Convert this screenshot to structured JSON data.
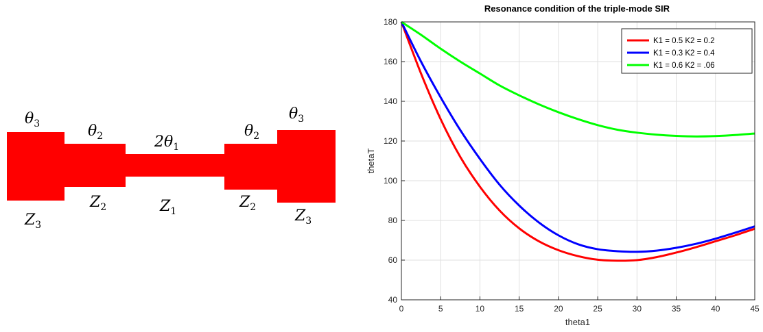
{
  "diagram": {
    "segment_color": "#ff0000",
    "labels": {
      "left_theta3": {
        "base": "θ",
        "sub": "3"
      },
      "left_theta2": {
        "base": "θ",
        "sub": "2"
      },
      "center_theta1": {
        "base": "2θ",
        "sub": "1"
      },
      "right_theta2": {
        "base": "θ",
        "sub": "2"
      },
      "right_theta3": {
        "base": "θ",
        "sub": "3"
      },
      "left_z3": {
        "base": "Z",
        "sub": "3"
      },
      "left_z2": {
        "base": "Z",
        "sub": "2"
      },
      "center_z1": {
        "base": "Z",
        "sub": "1"
      },
      "right_z2": {
        "base": "Z",
        "sub": "2"
      },
      "right_z3": {
        "base": "Z",
        "sub": "3"
      }
    }
  },
  "chart_data": {
    "type": "line",
    "title": "Resonance condition of the triple-mode SIR",
    "xlabel": "theta1",
    "ylabel": "thetaT",
    "xlim": [
      0,
      45
    ],
    "ylim": [
      40,
      180
    ],
    "xticks": [
      0,
      5,
      10,
      15,
      20,
      25,
      30,
      35,
      40,
      45
    ],
    "yticks": [
      40,
      60,
      80,
      100,
      120,
      140,
      160,
      180
    ],
    "grid": true,
    "legend_position": "top-right",
    "x": [
      0,
      2.5,
      5,
      7.5,
      10,
      12.5,
      15,
      17.5,
      20,
      22.5,
      25,
      27.5,
      30,
      32.5,
      35,
      37.5,
      40,
      42.5,
      45
    ],
    "series": [
      {
        "name": "K1 = 0.5 K2 = 0.2",
        "color": "#ff0000",
        "values": [
          180,
          154,
          131,
          112,
          97,
          85,
          76,
          69.5,
          65,
          62,
          60.2,
          59.7,
          60,
          61.5,
          63.8,
          66.5,
          69.5,
          72.5,
          75.8
        ]
      },
      {
        "name": "K1 = 0.3 K2 = 0.4",
        "color": "#0000ff",
        "values": [
          180,
          160,
          142,
          125.5,
          111,
          98,
          87.5,
          79,
          72.5,
          68,
          65.5,
          64.5,
          64.2,
          64.8,
          66.2,
          68.2,
          70.8,
          73.8,
          77
        ]
      },
      {
        "name": "K1 = 0.6 K2 = .06",
        "color": "#00ff00",
        "values": [
          180,
          173.5,
          166.5,
          160,
          154,
          148,
          143,
          138.5,
          134.5,
          131,
          128,
          125.7,
          124.2,
          123.2,
          122.6,
          122.3,
          122.5,
          123,
          123.8
        ]
      }
    ]
  }
}
